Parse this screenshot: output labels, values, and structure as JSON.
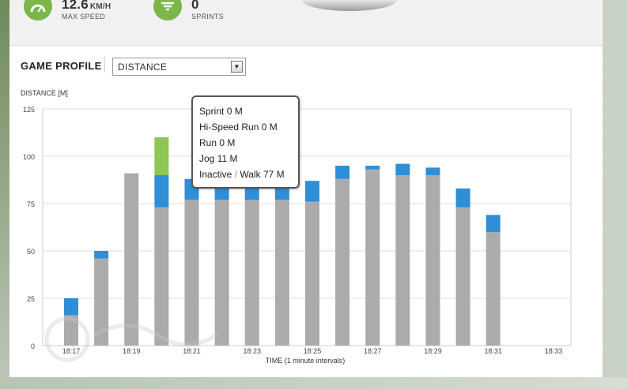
{
  "stats": [
    {
      "value": "12.6",
      "unit": "KM/H",
      "label": "MAX SPEED",
      "icon": "speedometer-icon"
    },
    {
      "value": "0",
      "unit": "",
      "label": "SPRINTS",
      "icon": "sprint-icon"
    }
  ],
  "section_title": "GAME PROFILE",
  "dropdown": {
    "selected": "DISTANCE",
    "arrow": "▼"
  },
  "tooltip": {
    "rows": [
      {
        "label": "Sprint",
        "value": "0 M"
      },
      {
        "label": "Hi-Speed Run",
        "value": "0 M"
      },
      {
        "label": "Run",
        "value": "0 M"
      },
      {
        "label": "Jog",
        "value": "11 M"
      }
    ],
    "last_row": {
      "label_a": "Inactive",
      "sep": "/",
      "label_b": "Walk",
      "value": "77 M"
    }
  },
  "colors": {
    "walk": "#ababab",
    "jog": "#2e8fd6",
    "run": "#8dc652",
    "gridline": "#dddddd",
    "plot_border": "#cccccc",
    "accent_green": "#7ab648"
  },
  "chart_data": {
    "type": "bar",
    "stacked": true,
    "ylabel": "DISTANCE [M]",
    "xlabel": "TIME (1 minute intervals)",
    "ylim": [
      0,
      125
    ],
    "yticks": [
      0,
      25,
      50,
      75,
      100,
      125
    ],
    "x_tick_labels": [
      "18:17",
      "18:19",
      "18:21",
      "18:23",
      "18:25",
      "18:27",
      "18:29",
      "18:31",
      "18:33"
    ],
    "grid": true,
    "categories": [
      "18:17",
      "18:18",
      "18:19",
      "18:20",
      "18:21",
      "18:22",
      "18:23",
      "18:24",
      "18:25",
      "18:26",
      "18:27",
      "18:28",
      "18:29",
      "18:30",
      "18:31"
    ],
    "series": [
      {
        "key": "walk",
        "values": [
          16,
          46,
          91,
          73,
          77,
          77,
          77,
          77,
          76,
          88,
          93,
          90,
          90,
          73,
          60
        ]
      },
      {
        "key": "jog",
        "values": [
          9,
          4,
          0,
          17,
          11,
          11,
          11,
          11,
          11,
          7,
          2,
          6,
          4,
          10,
          9
        ]
      },
      {
        "key": "run",
        "values": [
          0,
          0,
          0,
          20,
          0,
          0,
          0,
          0,
          0,
          0,
          0,
          0,
          0,
          0,
          0
        ]
      }
    ]
  }
}
